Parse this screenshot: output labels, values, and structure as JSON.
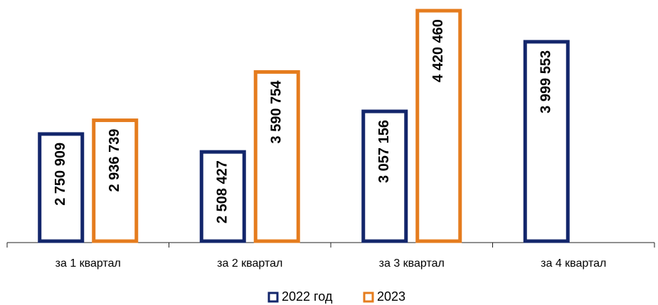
{
  "chart_data": {
    "type": "bar",
    "categories": [
      "за 1 квартал",
      "за 2 квартал",
      "за 3 квартал",
      "за 4 квартал"
    ],
    "series": [
      {
        "name": "2022 год",
        "color": "#13266b",
        "values": [
          2750909,
          2508427,
          3057156,
          3999553
        ],
        "value_labels": [
          "2 750 909",
          "2 508 427",
          "3 057 156",
          "3 999 553"
        ]
      },
      {
        "name": "2023",
        "color": "#e57c1e",
        "values": [
          2936739,
          3590754,
          4420460,
          null
        ],
        "value_labels": [
          "2 936 739",
          "3 590 754",
          "4 420 460",
          null
        ]
      }
    ],
    "ylim": [
      1300000,
      4450000
    ],
    "legend": "bottom"
  }
}
